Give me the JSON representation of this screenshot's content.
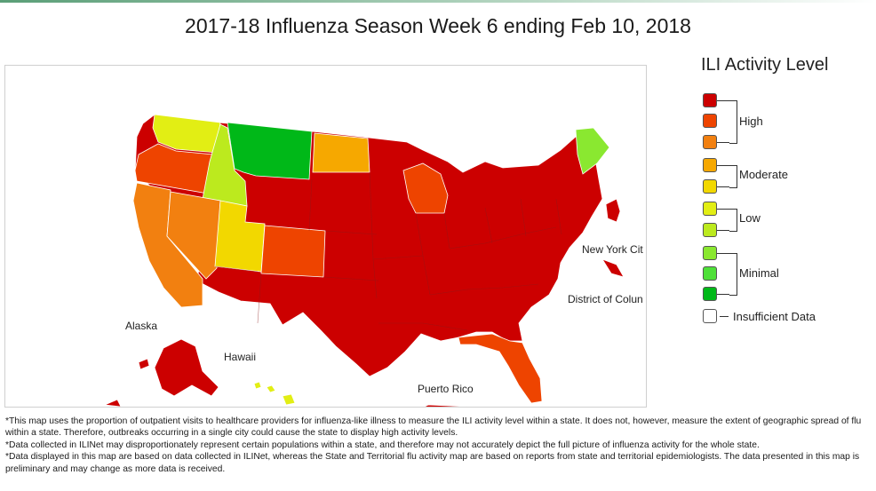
{
  "title": "2017-18 Influenza Season Week 6 ending Feb 10, 2018",
  "colors": {
    "high_dark": "#cc0000",
    "high_mid": "#ee4400",
    "high_light": "#f28010",
    "moderate_high": "#f6a800",
    "moderate_low": "#f2d800",
    "low_high": "#e2ee14",
    "low_low": "#bcea1e",
    "minimal_high": "#8ae830",
    "minimal_mid": "#4ee038",
    "minimal_low": "#00b818",
    "insufficient": "#ffffff"
  },
  "map": {
    "labels": {
      "alaska": "Alaska",
      "hawaii": "Hawaii",
      "puerto_rico": "Puerto Rico",
      "new_york_city": "New York Cit",
      "district_of_columbia": "District of Colun"
    }
  },
  "legend": {
    "title": "ILI Activity Level",
    "groups": [
      "High",
      "Moderate",
      "Low",
      "Minimal"
    ],
    "insufficient": "Insufficient Data"
  },
  "footnotes": [
    "*This map uses the proportion of outpatient visits to healthcare providers for influenza-like illness to measure the ILI activity level within a state. It does not, however, measure the extent of geographic spread of flu within a state. Therefore, outbreaks occurring in a single city could cause the state to display high activity levels.",
    "*Data collected in ILINet may disproportionately represent certain populations within a state, and therefore may not accurately depict the full picture of influenza activity for the whole state.",
    "*Data displayed in this map are based on data collected in ILINet, whereas the State and Territorial flu activity map are based on reports from state and territorial epidemiologists. The data presented in this map is preliminary and may change as more data is received."
  ]
}
